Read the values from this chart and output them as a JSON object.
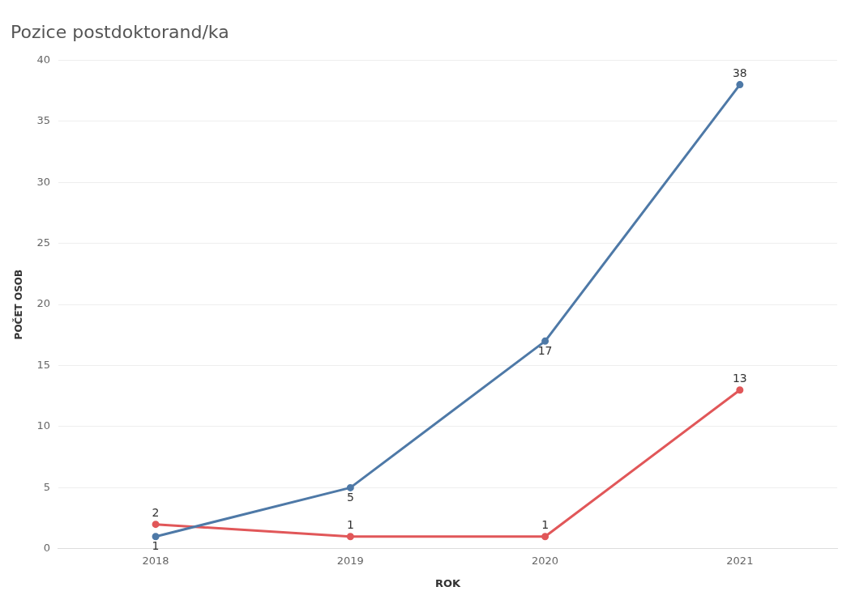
{
  "chart_data": {
    "type": "line",
    "title": "Pozice postdoktorand/ka",
    "xlabel": "ROK",
    "ylabel": "POČET OSOB",
    "categories": [
      "2018",
      "2019",
      "2020",
      "2021"
    ],
    "series": [
      {
        "color": "#4e79a7",
        "values": [
          1,
          5,
          17,
          38
        ]
      },
      {
        "color": "#e15759",
        "values": [
          2,
          1,
          1,
          13
        ]
      }
    ],
    "ylim": [
      0,
      40
    ],
    "yticks": [
      0,
      5,
      10,
      15,
      20,
      25,
      30,
      35,
      40
    ],
    "grid": "y",
    "data_labels": true,
    "marker": "circle",
    "legend": false
  }
}
